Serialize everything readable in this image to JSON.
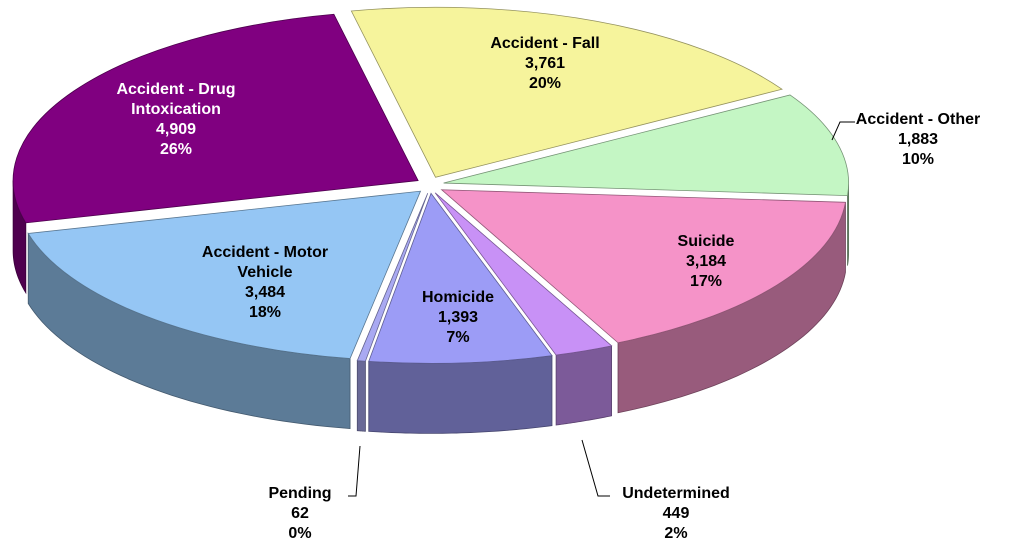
{
  "chart_data": {
    "type": "pie",
    "categories": [
      "Accident - Fall",
      "Accident - Other",
      "Suicide",
      "Undetermined",
      "Homicide",
      "Pending",
      "Accident - Motor Vehicle",
      "Accident - Drug Intoxication"
    ],
    "values": [
      3761,
      1883,
      3184,
      449,
      1393,
      62,
      3484,
      4909
    ],
    "value_labels": [
      "3,761",
      "1,883",
      "3,184",
      "449",
      "1,393",
      "62",
      "3,484",
      "4,909"
    ],
    "percent_labels": [
      "20%",
      "10%",
      "17%",
      "2%",
      "7%",
      "0%",
      "18%",
      "26%"
    ],
    "colors": [
      "#f6f49c",
      "#c4f6c4",
      "#f593c8",
      "#c891f6",
      "#9c9cf6",
      "#a9a9f2",
      "#95c6f4",
      "#800080"
    ]
  }
}
